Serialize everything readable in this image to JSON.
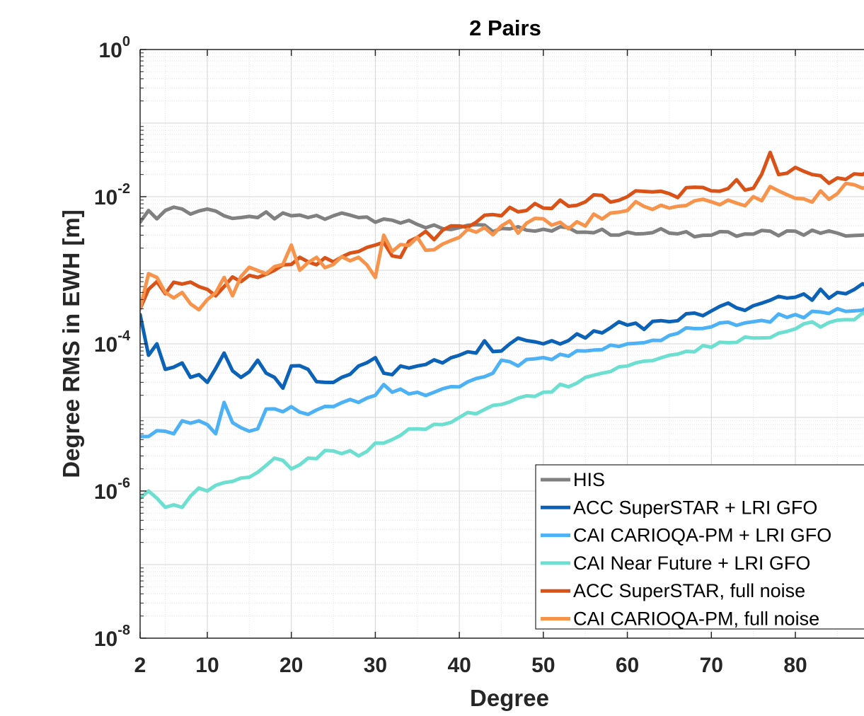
{
  "chart_data": {
    "type": "line",
    "title": "2 Pairs",
    "xlabel": "Degree",
    "ylabel": "Degree RMS in EWH [m]",
    "xlim": [
      2,
      90
    ],
    "ylim": [
      1e-08,
      1
    ],
    "yscale": "log",
    "grid": true,
    "minor_grid": true,
    "legend_position": "bottom-right",
    "x_ticks": [
      {
        "value": 2,
        "label": "2"
      },
      {
        "value": 10,
        "label": "10"
      },
      {
        "value": 20,
        "label": "20"
      },
      {
        "value": 30,
        "label": "30"
      },
      {
        "value": 40,
        "label": "40"
      },
      {
        "value": 50,
        "label": "50"
      },
      {
        "value": 60,
        "label": "60"
      },
      {
        "value": 70,
        "label": "70"
      },
      {
        "value": 80,
        "label": "80"
      }
    ],
    "y_ticks": [
      {
        "value": 1e-08,
        "base": "10",
        "exp": "-8"
      },
      {
        "value": 1e-06,
        "base": "10",
        "exp": "-6"
      },
      {
        "value": 0.0001,
        "base": "10",
        "exp": "-4"
      },
      {
        "value": 0.01,
        "base": "10",
        "exp": "-2"
      },
      {
        "value": 1,
        "base": "10",
        "exp": "0"
      }
    ],
    "series": [
      {
        "name": "HIS",
        "color": "#808080",
        "anchors": [
          [
            2,
            0.0045
          ],
          [
            3,
            0.0065
          ],
          [
            4,
            0.005
          ],
          [
            5,
            0.0065
          ],
          [
            6,
            0.0072
          ],
          [
            7,
            0.0068
          ],
          [
            8,
            0.0058
          ],
          [
            9,
            0.0064
          ],
          [
            10,
            0.0068
          ],
          [
            12,
            0.0055
          ],
          [
            14,
            0.0052
          ],
          [
            16,
            0.0052
          ],
          [
            17,
            0.0062
          ],
          [
            18,
            0.005
          ],
          [
            20,
            0.0055
          ],
          [
            22,
            0.0052
          ],
          [
            25,
            0.0055
          ],
          [
            28,
            0.0052
          ],
          [
            30,
            0.0045
          ],
          [
            32,
            0.0048
          ],
          [
            35,
            0.0042
          ],
          [
            40,
            0.0038
          ],
          [
            45,
            0.0037
          ],
          [
            50,
            0.0036
          ],
          [
            55,
            0.0033
          ],
          [
            60,
            0.0033
          ],
          [
            65,
            0.0032
          ],
          [
            70,
            0.003
          ],
          [
            75,
            0.0031
          ],
          [
            80,
            0.0034
          ],
          [
            85,
            0.0032
          ],
          [
            88,
            0.003
          ],
          [
            90,
            0.0035
          ]
        ]
      },
      {
        "name": "ACC SuperSTAR + LRI GFO",
        "color": "#0c62b7",
        "anchors": [
          [
            2,
            0.00025
          ],
          [
            3,
            7e-05
          ],
          [
            4,
            0.0001
          ],
          [
            5,
            4.5e-05
          ],
          [
            7,
            5.5e-05
          ],
          [
            8,
            3.5e-05
          ],
          [
            10,
            3e-05
          ],
          [
            12,
            7.5e-05
          ],
          [
            14,
            3.5e-05
          ],
          [
            16,
            6e-05
          ],
          [
            18,
            3.5e-05
          ],
          [
            19,
            2.5e-05
          ],
          [
            20,
            5e-05
          ],
          [
            22,
            4.5e-05
          ],
          [
            24,
            3e-05
          ],
          [
            26,
            3.5e-05
          ],
          [
            28,
            5e-05
          ],
          [
            30,
            6.5e-05
          ],
          [
            31,
            4e-05
          ],
          [
            35,
            5e-05
          ],
          [
            38,
            5.5e-05
          ],
          [
            40,
            7e-05
          ],
          [
            42,
            7.5e-05
          ],
          [
            43,
            0.00011
          ],
          [
            45,
            8e-05
          ],
          [
            47,
            0.00012
          ],
          [
            50,
            0.0001
          ],
          [
            55,
            0.00012
          ],
          [
            56,
            0.00015
          ],
          [
            60,
            0.00018
          ],
          [
            65,
            0.0002
          ],
          [
            70,
            0.00028
          ],
          [
            75,
            0.00033
          ],
          [
            80,
            0.00043
          ],
          [
            85,
            0.0005
          ],
          [
            90,
            0.00065
          ]
        ]
      },
      {
        "name": "CAI CARIOQA-PM + LRI GFO",
        "color": "#4db1f5",
        "anchors": [
          [
            2,
            5.5e-06
          ],
          [
            3,
            5.5e-06
          ],
          [
            5,
            6.5e-06
          ],
          [
            6,
            6e-06
          ],
          [
            7,
            9e-06
          ],
          [
            9,
            9e-06
          ],
          [
            11,
            6e-06
          ],
          [
            12,
            1.6e-05
          ],
          [
            13,
            8.5e-06
          ],
          [
            15,
            6.5e-06
          ],
          [
            16,
            7e-06
          ],
          [
            17,
            1.3e-05
          ],
          [
            20,
            1.4e-05
          ],
          [
            22,
            1.1e-05
          ],
          [
            25,
            1.4e-05
          ],
          [
            28,
            1.6e-05
          ],
          [
            30,
            2e-05
          ],
          [
            31,
            2.8e-05
          ],
          [
            32,
            2.2e-05
          ],
          [
            35,
            2.2e-05
          ],
          [
            40,
            2.6e-05
          ],
          [
            44,
            4e-05
          ],
          [
            45,
            6e-05
          ],
          [
            47,
            5e-05
          ],
          [
            50,
            6.5e-05
          ],
          [
            55,
            8e-05
          ],
          [
            60,
            0.0001
          ],
          [
            65,
            0.00013
          ],
          [
            70,
            0.00017
          ],
          [
            75,
            0.0002
          ],
          [
            80,
            0.00025
          ],
          [
            85,
            0.0003
          ],
          [
            90,
            0.00033
          ]
        ]
      },
      {
        "name": "CAI Near Future + LRI GFO",
        "color": "#6ddfd1",
        "anchors": [
          [
            2,
            8e-07
          ],
          [
            3,
            1e-06
          ],
          [
            4,
            8e-07
          ],
          [
            5,
            6e-07
          ],
          [
            6,
            6.5e-07
          ],
          [
            7,
            6e-07
          ],
          [
            9,
            1.1e-06
          ],
          [
            10,
            1e-06
          ],
          [
            12,
            1.3e-06
          ],
          [
            14,
            1.5e-06
          ],
          [
            16,
            1.8e-06
          ],
          [
            18,
            2.8e-06
          ],
          [
            20,
            2e-06
          ],
          [
            22,
            2.8e-06
          ],
          [
            25,
            3.5e-06
          ],
          [
            28,
            3e-06
          ],
          [
            30,
            4.5e-06
          ],
          [
            32,
            5e-06
          ],
          [
            35,
            7e-06
          ],
          [
            38,
            8e-06
          ],
          [
            40,
            1e-05
          ],
          [
            45,
            1.5e-05
          ],
          [
            50,
            2.2e-05
          ],
          [
            55,
            3.5e-05
          ],
          [
            60,
            5e-05
          ],
          [
            65,
            7e-05
          ],
          [
            70,
            9e-05
          ],
          [
            75,
            0.00012
          ],
          [
            80,
            0.00016
          ],
          [
            85,
            0.00021
          ],
          [
            90,
            0.00026
          ]
        ]
      },
      {
        "name": "ACC SuperSTAR, full noise",
        "color": "#d95319",
        "anchors": [
          [
            2,
            0.0003
          ],
          [
            3,
            0.00055
          ],
          [
            4,
            0.0007
          ],
          [
            5,
            0.00048
          ],
          [
            7,
            0.00065
          ],
          [
            9,
            0.0006
          ],
          [
            10,
            0.00055
          ],
          [
            11,
            0.00045
          ],
          [
            12,
            0.0006
          ],
          [
            14,
            0.0007
          ],
          [
            16,
            0.0008
          ],
          [
            18,
            0.001
          ],
          [
            20,
            0.0012
          ],
          [
            22,
            0.0013
          ],
          [
            25,
            0.0013
          ],
          [
            28,
            0.0018
          ],
          [
            30,
            0.0022
          ],
          [
            31,
            0.0024
          ],
          [
            33,
            0.0015
          ],
          [
            35,
            0.0028
          ],
          [
            38,
            0.0035
          ],
          [
            40,
            0.004
          ],
          [
            42,
            0.0045
          ],
          [
            45,
            0.0055
          ],
          [
            48,
            0.0065
          ],
          [
            50,
            0.007
          ],
          [
            52,
            0.009
          ],
          [
            55,
            0.0085
          ],
          [
            60,
            0.01
          ],
          [
            65,
            0.011
          ],
          [
            70,
            0.012
          ],
          [
            73,
            0.017
          ],
          [
            75,
            0.013
          ],
          [
            77,
            0.04
          ],
          [
            78,
            0.02
          ],
          [
            80,
            0.025
          ],
          [
            82,
            0.02
          ],
          [
            85,
            0.018
          ],
          [
            88,
            0.02
          ],
          [
            90,
            0.019
          ]
        ]
      },
      {
        "name": "CAI CARIOQA-PM, full noise",
        "color": "#f7934a",
        "anchors": [
          [
            2,
            0.0003
          ],
          [
            3,
            0.0009
          ],
          [
            4,
            0.0008
          ],
          [
            5,
            0.0005
          ],
          [
            7,
            0.0005
          ],
          [
            8,
            0.00035
          ],
          [
            10,
            0.0004
          ],
          [
            12,
            0.0008
          ],
          [
            13,
            0.00045
          ],
          [
            15,
            0.0011
          ],
          [
            17,
            0.0009
          ],
          [
            19,
            0.0012
          ],
          [
            20,
            0.0022
          ],
          [
            21,
            0.001
          ],
          [
            23,
            0.0015
          ],
          [
            25,
            0.0012
          ],
          [
            28,
            0.0015
          ],
          [
            30,
            0.0008
          ],
          [
            31,
            0.003
          ],
          [
            32,
            0.0018
          ],
          [
            35,
            0.0028
          ],
          [
            37,
            0.0019
          ],
          [
            40,
            0.0028
          ],
          [
            43,
            0.0038
          ],
          [
            45,
            0.004
          ],
          [
            47,
            0.0032
          ],
          [
            50,
            0.005
          ],
          [
            52,
            0.0045
          ],
          [
            55,
            0.004
          ],
          [
            58,
            0.006
          ],
          [
            60,
            0.0065
          ],
          [
            65,
            0.007
          ],
          [
            70,
            0.0085
          ],
          [
            72,
            0.009
          ],
          [
            75,
            0.01
          ],
          [
            78,
            0.012
          ],
          [
            80,
            0.0095
          ],
          [
            83,
            0.012
          ],
          [
            85,
            0.011
          ],
          [
            88,
            0.013
          ],
          [
            90,
            0.015
          ]
        ]
      }
    ]
  }
}
